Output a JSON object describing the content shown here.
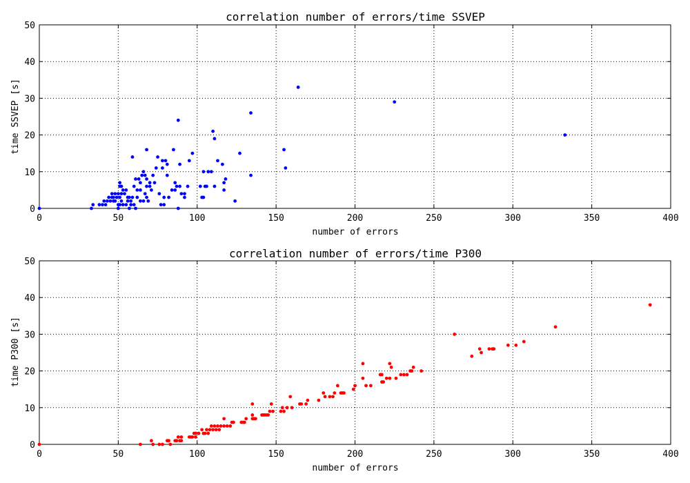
{
  "chart_data": [
    {
      "type": "scatter",
      "title": "correlation number of errors/time SSVEP",
      "xlabel": "number of errors",
      "ylabel": "time SSVEP [s]",
      "xlim": [
        0,
        400
      ],
      "ylim": [
        0,
        50
      ],
      "xticks": [
        0,
        50,
        100,
        150,
        200,
        250,
        300,
        350,
        400
      ],
      "yticks": [
        0,
        10,
        20,
        30,
        40,
        50
      ],
      "grid": true,
      "color": "#0000ff",
      "points": [
        [
          0,
          0
        ],
        [
          33,
          0
        ],
        [
          34,
          1
        ],
        [
          38,
          1
        ],
        [
          40,
          1
        ],
        [
          41,
          2
        ],
        [
          42,
          1
        ],
        [
          43,
          2
        ],
        [
          44,
          3
        ],
        [
          45,
          2
        ],
        [
          46,
          4
        ],
        [
          46,
          3
        ],
        [
          47,
          3
        ],
        [
          47,
          2
        ],
        [
          48,
          4
        ],
        [
          48,
          2
        ],
        [
          49,
          3
        ],
        [
          50,
          4
        ],
        [
          50,
          1
        ],
        [
          50,
          0
        ],
        [
          51,
          7
        ],
        [
          51,
          6
        ],
        [
          51,
          3
        ],
        [
          51,
          1
        ],
        [
          52,
          6
        ],
        [
          52,
          4
        ],
        [
          52,
          2
        ],
        [
          53,
          5
        ],
        [
          53,
          1
        ],
        [
          54,
          4
        ],
        [
          55,
          5
        ],
        [
          55,
          1
        ],
        [
          56,
          3
        ],
        [
          56,
          2
        ],
        [
          57,
          0
        ],
        [
          57,
          3
        ],
        [
          58,
          1
        ],
        [
          58,
          2
        ],
        [
          59,
          3
        ],
        [
          59,
          14
        ],
        [
          60,
          6
        ],
        [
          60,
          1
        ],
        [
          61,
          0
        ],
        [
          61,
          8
        ],
        [
          62,
          5
        ],
        [
          62,
          3
        ],
        [
          63,
          8
        ],
        [
          64,
          7
        ],
        [
          64,
          2
        ],
        [
          64,
          5
        ],
        [
          65,
          9
        ],
        [
          66,
          10
        ],
        [
          66,
          2
        ],
        [
          67,
          9
        ],
        [
          67,
          4
        ],
        [
          68,
          3
        ],
        [
          68,
          8
        ],
        [
          68,
          6
        ],
        [
          68,
          16
        ],
        [
          69,
          2
        ],
        [
          70,
          6
        ],
        [
          70,
          7
        ],
        [
          71,
          5
        ],
        [
          72,
          9
        ],
        [
          73,
          7
        ],
        [
          74,
          11
        ],
        [
          75,
          14
        ],
        [
          76,
          4
        ],
        [
          77,
          1
        ],
        [
          78,
          13
        ],
        [
          78,
          11
        ],
        [
          79,
          1
        ],
        [
          79,
          3
        ],
        [
          80,
          13
        ],
        [
          81,
          12
        ],
        [
          81,
          9
        ],
        [
          82,
          3
        ],
        [
          84,
          5
        ],
        [
          85,
          16
        ],
        [
          86,
          7
        ],
        [
          86,
          5
        ],
        [
          87,
          6
        ],
        [
          88,
          24
        ],
        [
          88,
          0
        ],
        [
          89,
          12
        ],
        [
          89,
          6
        ],
        [
          90,
          4
        ],
        [
          92,
          3
        ],
        [
          92,
          4
        ],
        [
          94,
          6
        ],
        [
          95,
          13
        ],
        [
          97,
          15
        ],
        [
          102,
          6
        ],
        [
          103,
          3
        ],
        [
          104,
          10
        ],
        [
          104,
          3
        ],
        [
          105,
          6
        ],
        [
          106,
          6
        ],
        [
          107,
          10
        ],
        [
          109,
          10
        ],
        [
          110,
          21
        ],
        [
          111,
          6
        ],
        [
          111,
          19
        ],
        [
          113,
          13
        ],
        [
          116,
          12
        ],
        [
          117,
          7
        ],
        [
          117,
          5
        ],
        [
          118,
          8
        ],
        [
          124,
          2
        ],
        [
          127,
          15
        ],
        [
          134,
          26
        ],
        [
          134,
          9
        ],
        [
          155,
          16
        ],
        [
          156,
          11
        ],
        [
          164,
          33
        ],
        [
          225,
          29
        ],
        [
          333,
          20
        ]
      ]
    },
    {
      "type": "scatter",
      "title": "correlation number of errors/time P300",
      "xlabel": "number of errors",
      "ylabel": "time P300 [s]",
      "xlim": [
        0,
        400
      ],
      "ylim": [
        0,
        50
      ],
      "xticks": [
        0,
        50,
        100,
        150,
        200,
        250,
        300,
        350,
        400
      ],
      "yticks": [
        0,
        10,
        20,
        30,
        40,
        50
      ],
      "grid": true,
      "color": "#ff0000",
      "points": [
        [
          0,
          0
        ],
        [
          64,
          0
        ],
        [
          71,
          1
        ],
        [
          72,
          0
        ],
        [
          76,
          0
        ],
        [
          78,
          0
        ],
        [
          81,
          1
        ],
        [
          82,
          1
        ],
        [
          83,
          0
        ],
        [
          86,
          1
        ],
        [
          87,
          1
        ],
        [
          88,
          2
        ],
        [
          89,
          1
        ],
        [
          90,
          1
        ],
        [
          90,
          2
        ],
        [
          95,
          2
        ],
        [
          96,
          2
        ],
        [
          97,
          2
        ],
        [
          98,
          3
        ],
        [
          99,
          2
        ],
        [
          99,
          3
        ],
        [
          101,
          3
        ],
        [
          103,
          4
        ],
        [
          104,
          3
        ],
        [
          105,
          3
        ],
        [
          106,
          4
        ],
        [
          107,
          3
        ],
        [
          108,
          4
        ],
        [
          109,
          5
        ],
        [
          110,
          4
        ],
        [
          111,
          5
        ],
        [
          112,
          4
        ],
        [
          113,
          5
        ],
        [
          114,
          4
        ],
        [
          115,
          5
        ],
        [
          117,
          5
        ],
        [
          117,
          7
        ],
        [
          119,
          5
        ],
        [
          121,
          5
        ],
        [
          122,
          6
        ],
        [
          123,
          6
        ],
        [
          128,
          6
        ],
        [
          129,
          6
        ],
        [
          130,
          6
        ],
        [
          131,
          7
        ],
        [
          135,
          7
        ],
        [
          135,
          8
        ],
        [
          135,
          11
        ],
        [
          136,
          7
        ],
        [
          137,
          7
        ],
        [
          141,
          8
        ],
        [
          142,
          8
        ],
        [
          143,
          8
        ],
        [
          144,
          8
        ],
        [
          145,
          8
        ],
        [
          146,
          9
        ],
        [
          147,
          11
        ],
        [
          148,
          9
        ],
        [
          153,
          9
        ],
        [
          154,
          10
        ],
        [
          155,
          9
        ],
        [
          157,
          10
        ],
        [
          159,
          13
        ],
        [
          160,
          10
        ],
        [
          165,
          11
        ],
        [
          166,
          11
        ],
        [
          169,
          11
        ],
        [
          170,
          12
        ],
        [
          177,
          12
        ],
        [
          180,
          14
        ],
        [
          181,
          13
        ],
        [
          184,
          13
        ],
        [
          186,
          13
        ],
        [
          187,
          14
        ],
        [
          189,
          16
        ],
        [
          191,
          14
        ],
        [
          192,
          14
        ],
        [
          193,
          14
        ],
        [
          199,
          15
        ],
        [
          200,
          16
        ],
        [
          205,
          18
        ],
        [
          205,
          22
        ],
        [
          207,
          16
        ],
        [
          210,
          16
        ],
        [
          216,
          19
        ],
        [
          217,
          19
        ],
        [
          217,
          17
        ],
        [
          218,
          17
        ],
        [
          220,
          18
        ],
        [
          222,
          22
        ],
        [
          222,
          18
        ],
        [
          223,
          21
        ],
        [
          226,
          18
        ],
        [
          229,
          19
        ],
        [
          231,
          19
        ],
        [
          233,
          19
        ],
        [
          235,
          20
        ],
        [
          236,
          20
        ],
        [
          237,
          21
        ],
        [
          242,
          20
        ],
        [
          263,
          30
        ],
        [
          274,
          24
        ],
        [
          279,
          26
        ],
        [
          280,
          25
        ],
        [
          285,
          26
        ],
        [
          287,
          26
        ],
        [
          288,
          26
        ],
        [
          297,
          27
        ],
        [
          302,
          27
        ],
        [
          307,
          28
        ],
        [
          327,
          32
        ],
        [
          387,
          38
        ]
      ]
    }
  ]
}
